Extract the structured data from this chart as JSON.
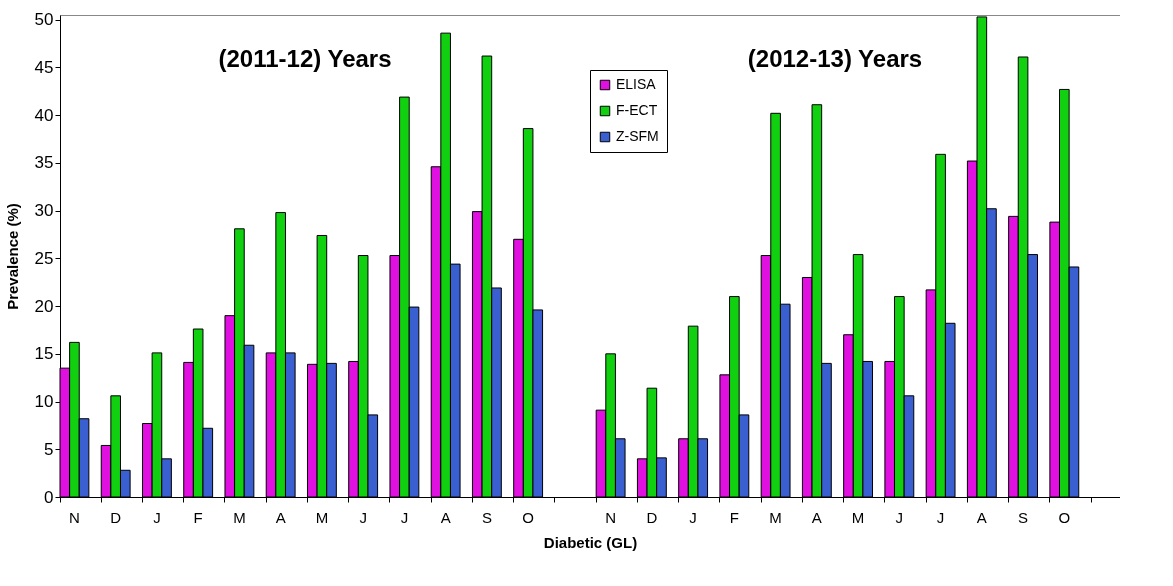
{
  "chart_data": {
    "type": "bar",
    "xlabel": "Diabetic (GL)",
    "ylabel": "Prevalence (%)",
    "categories": [
      "N",
      "D",
      "J",
      "F",
      "M",
      "A",
      "M",
      "J",
      "J",
      "A",
      "S",
      "O",
      null,
      "N",
      "D",
      "J",
      "F",
      "M",
      "A",
      "M",
      "J",
      "J",
      "A",
      "S",
      "O",
      null
    ],
    "series": [
      {
        "name": "ELISA",
        "color": "#e010e0",
        "values": [
          13.5,
          5.4,
          7.7,
          14.1,
          19,
          15.1,
          13.9,
          14.2,
          25.3,
          34.6,
          29.9,
          27,
          null,
          9.1,
          4,
          6.1,
          12.8,
          25.3,
          23,
          17,
          14.2,
          21.7,
          35.2,
          29.4,
          28.8,
          null
        ]
      },
      {
        "name": "F-ECT",
        "color": "#10d010",
        "values": [
          16.2,
          10.6,
          15.1,
          17.6,
          28.1,
          29.8,
          27.4,
          25.3,
          41.9,
          48.6,
          46.2,
          38.6,
          null,
          15,
          11.4,
          17.9,
          21,
          40.2,
          41.1,
          25.4,
          21,
          35.9,
          50.3,
          46.1,
          42.7,
          null
        ]
      },
      {
        "name": "Z-SFM",
        "color": "#3a5fd0",
        "values": [
          8.2,
          2.8,
          4,
          7.2,
          15.9,
          15.1,
          14,
          8.6,
          19.9,
          24.4,
          21.9,
          19.6,
          null,
          6.1,
          4.1,
          6.1,
          8.6,
          20.2,
          14,
          14.2,
          10.6,
          18.2,
          30.2,
          25.4,
          24.1,
          null
        ]
      }
    ],
    "ylim": [
      0,
      50.5
    ],
    "yticks": [
      0,
      5,
      10,
      15,
      20,
      25,
      30,
      35,
      40,
      45,
      50
    ],
    "annotations": [
      "(2011-12) Years",
      "(2012-13) Years"
    ],
    "legend": "top",
    "grid": false
  }
}
